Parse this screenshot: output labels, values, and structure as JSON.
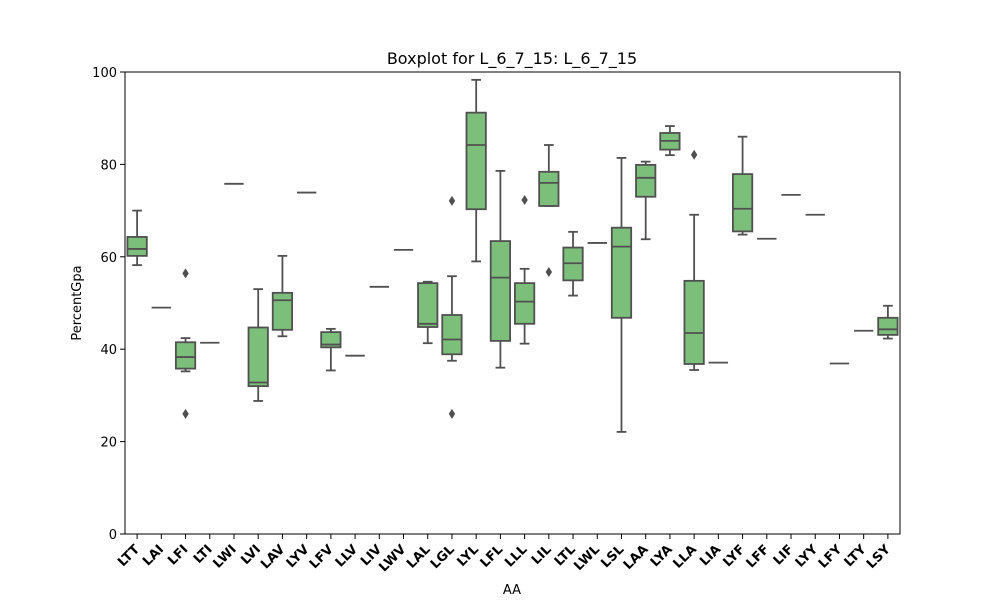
{
  "chart_data": {
    "type": "box",
    "title": "Boxplot for L_6_7_15: L_6_7_15",
    "xlabel": "AA",
    "ylabel": "PercentGpa",
    "ylim": [
      0,
      100
    ],
    "yticks": [
      0,
      20,
      40,
      60,
      80,
      100
    ],
    "grid": false,
    "legend": "none",
    "box_color": "#7bbf7b",
    "edge_color": "#505050",
    "categories": [
      "LTT",
      "LAI",
      "LFI",
      "LTI",
      "LWI",
      "LVI",
      "LAV",
      "LYV",
      "LFV",
      "LLV",
      "LIV",
      "LWV",
      "LAL",
      "LGL",
      "LYL",
      "LFL",
      "LLL",
      "LIL",
      "LTL",
      "LWL",
      "LSL",
      "LAA",
      "LYA",
      "LLA",
      "LIA",
      "LYF",
      "LFF",
      "LIF",
      "LYY",
      "LFY",
      "LTY",
      "LSY"
    ],
    "boxes": [
      {
        "label": "LTT",
        "min": 58.2,
        "q1": 60.2,
        "median": 61.7,
        "q3": 64.3,
        "max": 70.0,
        "outliers": []
      },
      {
        "label": "LAI",
        "min": 49.0,
        "q1": 49.0,
        "median": 49.0,
        "q3": 49.0,
        "max": 49.0,
        "outliers": []
      },
      {
        "label": "LFI",
        "min": 35.2,
        "q1": 35.8,
        "median": 38.3,
        "q3": 41.5,
        "max": 42.4,
        "outliers": [
          56.4,
          26.0
        ]
      },
      {
        "label": "LTI",
        "min": 41.4,
        "q1": 41.4,
        "median": 41.4,
        "q3": 41.4,
        "max": 41.4,
        "outliers": []
      },
      {
        "label": "LWI",
        "min": 75.8,
        "q1": 75.8,
        "median": 75.8,
        "q3": 75.8,
        "max": 75.8,
        "outliers": []
      },
      {
        "label": "LVI",
        "min": 28.8,
        "q1": 32.0,
        "median": 32.8,
        "q3": 44.7,
        "max": 53.0,
        "outliers": []
      },
      {
        "label": "LAV",
        "min": 42.8,
        "q1": 44.2,
        "median": 50.6,
        "q3": 52.2,
        "max": 60.2,
        "outliers": []
      },
      {
        "label": "LYV",
        "min": 73.9,
        "q1": 73.9,
        "median": 73.9,
        "q3": 73.9,
        "max": 73.9,
        "outliers": []
      },
      {
        "label": "LFV",
        "min": 35.4,
        "q1": 40.4,
        "median": 41.0,
        "q3": 43.7,
        "max": 44.4,
        "outliers": []
      },
      {
        "label": "LLV",
        "min": 38.6,
        "q1": 38.6,
        "median": 38.6,
        "q3": 38.6,
        "max": 38.6,
        "outliers": []
      },
      {
        "label": "LIV",
        "min": 53.5,
        "q1": 53.5,
        "median": 53.5,
        "q3": 53.5,
        "max": 53.5,
        "outliers": []
      },
      {
        "label": "LWV",
        "min": 61.5,
        "q1": 61.5,
        "median": 61.5,
        "q3": 61.5,
        "max": 61.5,
        "outliers": []
      },
      {
        "label": "LAL",
        "min": 41.3,
        "q1": 44.8,
        "median": 45.5,
        "q3": 54.3,
        "max": 54.6,
        "outliers": []
      },
      {
        "label": "LGL",
        "min": 37.5,
        "q1": 38.9,
        "median": 42.1,
        "q3": 47.4,
        "max": 55.8,
        "outliers": [
          72.1,
          26.0
        ]
      },
      {
        "label": "LYL",
        "min": 59.0,
        "q1": 70.3,
        "median": 84.2,
        "q3": 91.2,
        "max": 98.3,
        "outliers": []
      },
      {
        "label": "LFL",
        "min": 36.0,
        "q1": 41.8,
        "median": 55.5,
        "q3": 63.4,
        "max": 78.6,
        "outliers": []
      },
      {
        "label": "LLL",
        "min": 41.2,
        "q1": 45.5,
        "median": 50.3,
        "q3": 54.3,
        "max": 57.4,
        "outliers": [
          72.3
        ]
      },
      {
        "label": "LIL",
        "min": 71.0,
        "q1": 71.0,
        "median": 76.0,
        "q3": 78.4,
        "max": 84.2,
        "outliers": [
          56.7
        ]
      },
      {
        "label": "LTL",
        "min": 51.6,
        "q1": 54.9,
        "median": 58.6,
        "q3": 62.0,
        "max": 65.4,
        "outliers": []
      },
      {
        "label": "LWL",
        "min": 63.0,
        "q1": 63.0,
        "median": 63.0,
        "q3": 63.0,
        "max": 63.0,
        "outliers": []
      },
      {
        "label": "LSL",
        "min": 22.1,
        "q1": 46.8,
        "median": 62.2,
        "q3": 66.3,
        "max": 81.4,
        "outliers": []
      },
      {
        "label": "LAA",
        "min": 63.8,
        "q1": 73.0,
        "median": 77.1,
        "q3": 79.9,
        "max": 80.6,
        "outliers": []
      },
      {
        "label": "LYA",
        "min": 82.0,
        "q1": 83.2,
        "median": 85.1,
        "q3": 86.8,
        "max": 88.3,
        "outliers": []
      },
      {
        "label": "LLA",
        "min": 35.5,
        "q1": 36.8,
        "median": 43.5,
        "q3": 54.8,
        "max": 69.1,
        "outliers": [
          82.1
        ]
      },
      {
        "label": "LIA",
        "min": 37.1,
        "q1": 37.1,
        "median": 37.1,
        "q3": 37.1,
        "max": 37.1,
        "outliers": []
      },
      {
        "label": "LYF",
        "min": 64.8,
        "q1": 65.5,
        "median": 70.4,
        "q3": 77.9,
        "max": 86.0,
        "outliers": []
      },
      {
        "label": "LFF",
        "min": 63.9,
        "q1": 63.9,
        "median": 63.9,
        "q3": 63.9,
        "max": 63.9,
        "outliers": []
      },
      {
        "label": "LIF",
        "min": 73.4,
        "q1": 73.4,
        "median": 73.4,
        "q3": 73.4,
        "max": 73.4,
        "outliers": []
      },
      {
        "label": "LYY",
        "min": 69.1,
        "q1": 69.1,
        "median": 69.1,
        "q3": 69.1,
        "max": 69.1,
        "outliers": []
      },
      {
        "label": "LFY",
        "min": 36.9,
        "q1": 36.9,
        "median": 36.9,
        "q3": 36.9,
        "max": 36.9,
        "outliers": []
      },
      {
        "label": "LTY",
        "min": 44.0,
        "q1": 44.0,
        "median": 44.0,
        "q3": 44.0,
        "max": 44.0,
        "outliers": []
      },
      {
        "label": "LSY",
        "min": 42.3,
        "q1": 43.1,
        "median": 44.3,
        "q3": 46.8,
        "max": 49.4,
        "outliers": []
      }
    ]
  }
}
